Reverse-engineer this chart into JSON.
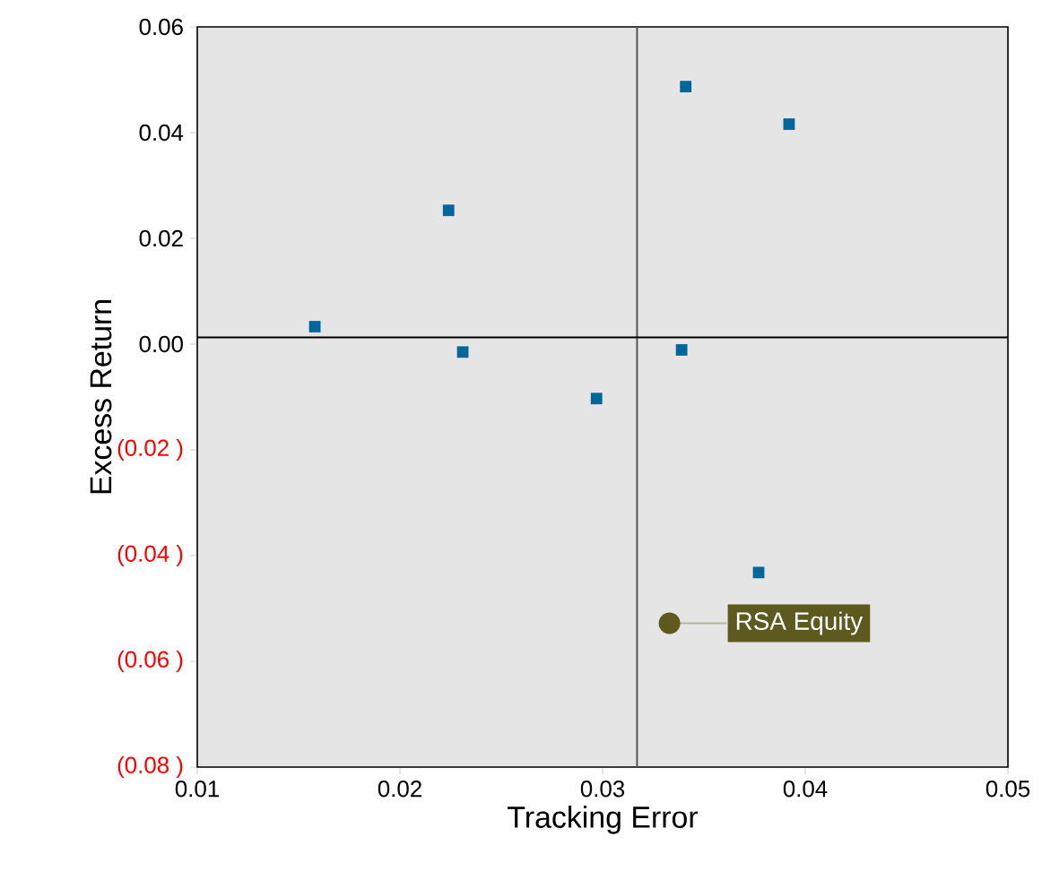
{
  "chart_data": {
    "type": "scatter",
    "xlabel": "Tracking Error",
    "ylabel": "Excess Return",
    "xlim": [
      0.01,
      0.05
    ],
    "xticks": [
      0.01,
      0.02,
      0.03,
      0.04,
      0.05
    ],
    "ylim": [
      -0.08,
      0.06
    ],
    "yticks": [
      {
        "value": 0.06,
        "label": "0.06"
      },
      {
        "value": 0.04,
        "label": "0.04"
      },
      {
        "value": 0.02,
        "label": "0.02"
      },
      {
        "value": 0,
        "label": "0.00"
      },
      {
        "value": -0.02,
        "label": "(0.02 )"
      },
      {
        "value": -0.04,
        "label": "(0.04 )"
      },
      {
        "value": -0.06,
        "label": "(0.06 )"
      },
      {
        "value": -0.08,
        "label": "(0.08 )"
      }
    ],
    "grid": false,
    "ref_lines": [
      {
        "axis": "x",
        "value": 0.0317,
        "color": "#555555"
      },
      {
        "axis": "y",
        "value": 0.00125,
        "color": "#000000"
      }
    ],
    "series": [
      {
        "color": "#00679c",
        "marker": "square",
        "x": [
          0.0341,
          0.0392,
          0.0224,
          0.0158,
          0.0231,
          0.0339,
          0.0297,
          0.0377
        ],
        "values": [
          0.0487,
          0.0416,
          0.0253,
          0.0033,
          -0.0015,
          -0.0011,
          -0.0103,
          -0.0432
        ]
      },
      {
        "name": "RSA Equity",
        "color": "#5e5a1f",
        "marker": "circle",
        "x": [
          0.0333
        ],
        "values": [
          -0.0528
        ]
      }
    ]
  }
}
